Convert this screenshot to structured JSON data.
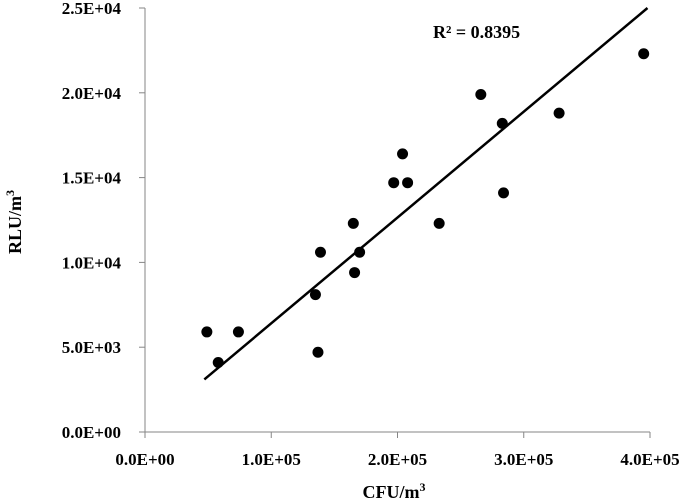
{
  "chart_data": {
    "type": "scatter",
    "title": "",
    "xlabel": "CFU/m",
    "xlabel_sup": "3",
    "ylabel": "RLU/m",
    "ylabel_sup": "3",
    "xlim": [
      0,
      400000
    ],
    "ylim": [
      0,
      25000
    ],
    "x_tick_values": [
      0,
      100000,
      200000,
      300000,
      400000
    ],
    "x_tick_labels": [
      "0.0E+00",
      "1.0E+05",
      "2.0E+05",
      "3.0E+05",
      "4.0E+05"
    ],
    "y_tick_values": [
      0,
      5000,
      10000,
      15000,
      20000,
      25000
    ],
    "y_tick_labels": [
      "0.0E+00",
      "5.0E+03",
      "1.0E+04",
      "1.5E+04",
      "2.0E+04",
      "2.5E+04"
    ],
    "grid": false,
    "legend": "none",
    "annotation": "R² = 0.8395",
    "points": [
      {
        "x": 49000,
        "y": 5900
      },
      {
        "x": 58000,
        "y": 4100
      },
      {
        "x": 74000,
        "y": 5900
      },
      {
        "x": 135000,
        "y": 8100
      },
      {
        "x": 137000,
        "y": 4700
      },
      {
        "x": 139000,
        "y": 10600
      },
      {
        "x": 165000,
        "y": 12300
      },
      {
        "x": 166000,
        "y": 9400
      },
      {
        "x": 170000,
        "y": 10600
      },
      {
        "x": 197000,
        "y": 14700
      },
      {
        "x": 204000,
        "y": 16400
      },
      {
        "x": 208000,
        "y": 14700
      },
      {
        "x": 233000,
        "y": 12300
      },
      {
        "x": 266000,
        "y": 19900
      },
      {
        "x": 283000,
        "y": 18200
      },
      {
        "x": 284000,
        "y": 14100
      },
      {
        "x": 328000,
        "y": 18800
      },
      {
        "x": 395000,
        "y": 22300
      }
    ],
    "trendline": {
      "x1": 47000,
      "y1": 3100,
      "x2": 398000,
      "y2": 25000
    },
    "marker_color": "#000000",
    "line_color": "#000000"
  }
}
